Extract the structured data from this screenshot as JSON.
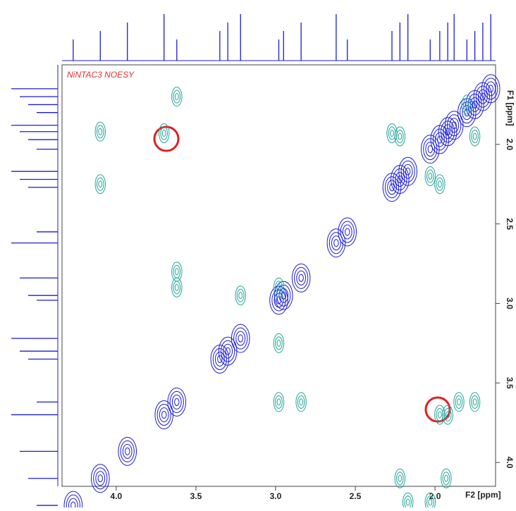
{
  "chart_data": {
    "type": "contour",
    "title": "NiNTAC3 NOESY",
    "xlabel": "F2 [ppm]",
    "ylabel": "F1 [ppm]",
    "xlim": [
      4.34,
      1.62
    ],
    "ylim": [
      1.5,
      4.15
    ],
    "xticks": [
      {
        "value": 4,
        "label": "4.0"
      },
      3.5,
      {
        "value": 3,
        "label": "3.0"
      },
      2.5,
      {
        "value": 2,
        "label": "2.0"
      }
    ],
    "yticks": [
      {
        "value": 2,
        "label": "2.0"
      },
      2.5,
      {
        "value": 3,
        "label": "3.0"
      },
      3.5,
      {
        "value": 4,
        "label": "4.0"
      }
    ],
    "series": [
      {
        "color": "#1c1cd6",
        "x": [
          4.27,
          4.1,
          3.93,
          3.7,
          3.62,
          3.35,
          3.3,
          3.22,
          2.98,
          2.95,
          2.84,
          2.62,
          2.55,
          2.27,
          2.22,
          2.17,
          2.03,
          1.97,
          1.92,
          1.88,
          1.8,
          1.75,
          1.7,
          1.65
        ],
        "y": [
          4.27,
          4.1,
          3.93,
          3.7,
          3.62,
          3.35,
          3.3,
          3.22,
          2.98,
          2.95,
          2.84,
          2.62,
          2.55,
          2.27,
          2.22,
          2.17,
          2.03,
          1.97,
          1.92,
          1.88,
          1.8,
          1.75,
          1.7,
          1.65
        ]
      },
      {
        "color": "#23a59a",
        "x": [
          3.62,
          3.7,
          4.1,
          4.1,
          3.62,
          3.62,
          3.22,
          2.98,
          2.98,
          2.98,
          2.84,
          1.97,
          1.92,
          1.85,
          1.75,
          2.22,
          2.17,
          2.03,
          1.93,
          2.27,
          2.22,
          1.8,
          1.75,
          1.97,
          2.03
        ],
        "y": [
          1.7,
          1.93,
          1.92,
          2.25,
          2.8,
          2.9,
          2.95,
          2.9,
          3.25,
          3.62,
          3.62,
          3.7,
          3.7,
          3.62,
          3.62,
          4.1,
          4.25,
          4.25,
          4.1,
          1.93,
          1.95,
          1.75,
          1.95,
          2.25,
          2.2
        ]
      }
    ]
  }
}
